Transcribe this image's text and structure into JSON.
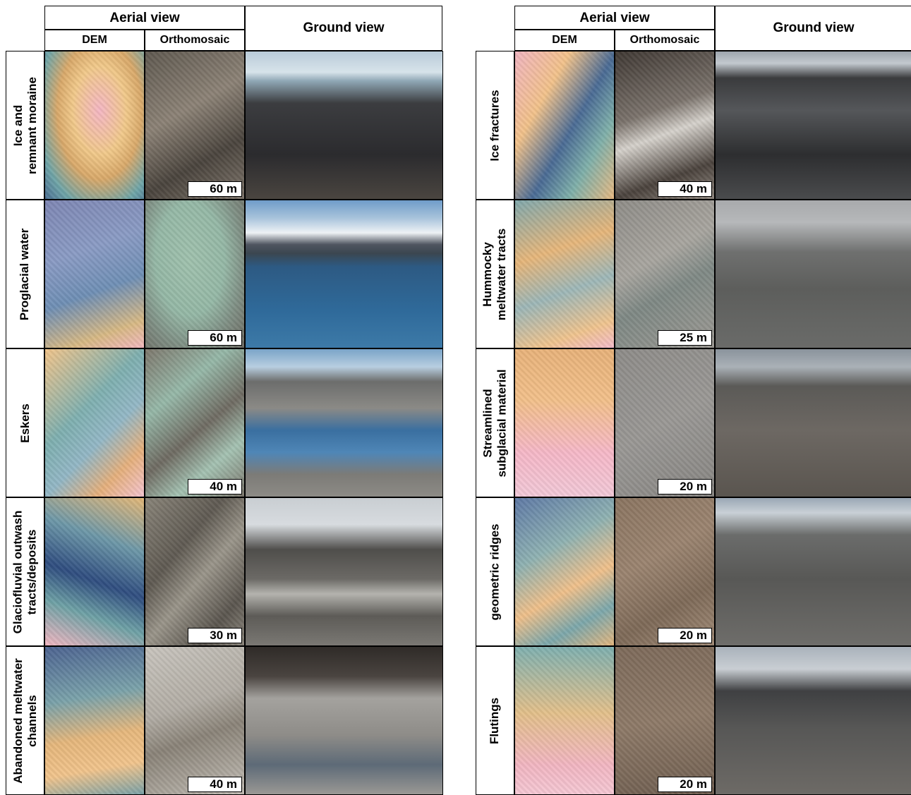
{
  "headers": {
    "aerial": "Aerial view",
    "dem": "DEM",
    "orthomosaic": "Orthomosaic",
    "ground": "Ground view"
  },
  "left_panel": [
    {
      "label": "Ice and\nremnant moraine",
      "scale": "60 m"
    },
    {
      "label": "Proglacial water",
      "scale": "60 m"
    },
    {
      "label": "Eskers",
      "scale": "40 m"
    },
    {
      "label": "Glaciofluvial outwash\ntracts/deposits",
      "scale": "30 m"
    },
    {
      "label": "Abandoned meltwater\nchannels",
      "scale": "40 m"
    }
  ],
  "right_panel": [
    {
      "label": "Ice fractures",
      "scale": "40 m"
    },
    {
      "label": "Hummocky\nmeltwater tracts",
      "scale": "25 m"
    },
    {
      "label": "Streamlined\nsubglacial material",
      "scale": "20 m"
    },
    {
      "label": "geometric ridges",
      "scale": "20 m"
    },
    {
      "label": "Flutings",
      "scale": "20 m"
    }
  ]
}
